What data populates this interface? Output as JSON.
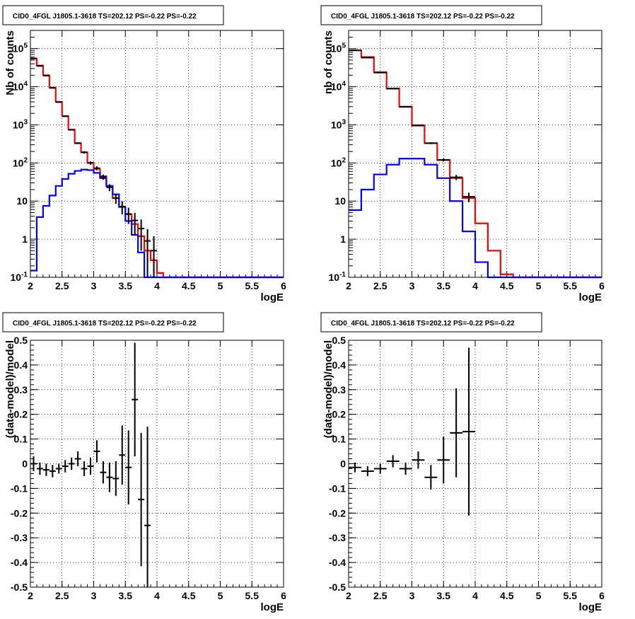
{
  "panel_title": "CID0_4FGL J1805.1-3618 TS=202.12 PS=-0.22 PS=-0.22",
  "chart_data": [
    {
      "type": "line",
      "title": "CID0_4FGL J1805.1-3618 TS=202.12 PS=-0.22 PS=-0.22",
      "xlabel": "logE",
      "ylabel": "Nb of counts",
      "xlim": [
        2,
        6
      ],
      "ylim": [
        0.1,
        300000
      ],
      "yscale": "log",
      "grid": true,
      "x_ticks": [
        "2",
        "2.5",
        "3",
        "3.5",
        "4",
        "4.5",
        "5",
        "5.5",
        "6"
      ],
      "y_ticks": [
        "10^-1",
        "1",
        "10",
        "10^2",
        "10^3",
        "10^4",
        "10^5"
      ],
      "bin_edges": [
        2.0,
        2.1,
        2.2,
        2.3,
        2.4,
        2.5,
        2.6,
        2.7,
        2.8,
        2.9,
        3.0,
        3.1,
        3.2,
        3.3,
        3.4,
        3.5,
        3.6,
        3.7,
        3.8,
        3.9,
        4.0,
        4.1,
        4.2,
        4.3,
        4.4,
        4.5,
        6.0
      ],
      "series": [
        {
          "color": "#ff0000",
          "style": "step",
          "values": [
            55000,
            36000,
            20000,
            9500,
            4000,
            1700,
            750,
            330,
            190,
            100,
            70,
            45,
            25,
            12,
            7,
            4.5,
            2.5,
            1.2,
            0.5,
            0.28,
            0.13,
            0.1,
            0.1,
            0.1,
            0.1,
            0.1
          ]
        },
        {
          "color": "#0000ff",
          "style": "step",
          "values": [
            0.15,
            3.8,
            7.5,
            14,
            25,
            38,
            52,
            62,
            67,
            65,
            55,
            40,
            25,
            15,
            7,
            3,
            1.3,
            0.45,
            0.1,
            0.1,
            0.1,
            0.1,
            0.1,
            0.1,
            0.1,
            0.1
          ]
        },
        {
          "color": "#000000",
          "style": "points",
          "x": [
            2.05,
            2.15,
            2.25,
            2.35,
            2.45,
            2.55,
            2.65,
            2.75,
            2.85,
            2.95,
            3.05,
            3.15,
            3.25,
            3.35,
            3.45,
            3.55,
            3.65,
            3.75,
            3.85,
            3.95
          ],
          "y": [
            55000,
            35000,
            19500,
            9300,
            3950,
            1680,
            740,
            330,
            190,
            100,
            73,
            43,
            23,
            12,
            7.2,
            4.6,
            3.1,
            1.9,
            0.9,
            0.5
          ],
          "yerr": [
            234,
            187,
            140,
            96,
            63,
            41,
            27,
            18,
            14,
            10,
            8.5,
            6.6,
            4.8,
            3.5,
            2.7,
            2.1,
            1.8,
            1.4,
            0.95,
            0.7
          ]
        }
      ]
    },
    {
      "type": "line",
      "title": "CID0_4FGL J1805.1-3618 TS=202.12 PS=-0.22 PS=-0.22",
      "xlabel": "logE",
      "ylabel": "nb of counts",
      "xlim": [
        2,
        6
      ],
      "ylim": [
        0.1,
        300000
      ],
      "yscale": "log",
      "grid": true,
      "x_ticks": [
        "2",
        "2.5",
        "3",
        "3.5",
        "4",
        "4.5",
        "5",
        "5.5",
        "6"
      ],
      "y_ticks": [
        "10^-1",
        "1",
        "10",
        "10^2",
        "10^3",
        "10^4",
        "10^5"
      ],
      "bin_edges": [
        2.0,
        2.2,
        2.4,
        2.6,
        2.8,
        3.0,
        3.2,
        3.4,
        3.6,
        3.8,
        4.0,
        4.2,
        4.4,
        4.6,
        4.8,
        6.0
      ],
      "series": [
        {
          "color": "#ff0000",
          "style": "step",
          "values": [
            90000,
            60000,
            24000,
            9000,
            3000,
            950,
            330,
            120,
            40,
            12,
            2.6,
            0.5,
            0.12,
            0.1,
            0.1
          ]
        },
        {
          "color": "#0000ff",
          "style": "step",
          "values": [
            5.8,
            20,
            50,
            90,
            130,
            130,
            90,
            40,
            10,
            1.6,
            0.25,
            0.1,
            0.1,
            0.1,
            0.1
          ]
        },
        {
          "color": "#000000",
          "style": "points",
          "x": [
            2.1,
            2.3,
            2.5,
            2.7,
            2.9,
            3.1,
            3.3,
            3.5,
            3.7,
            3.9
          ],
          "y": [
            90000,
            58000,
            23500,
            8900,
            2950,
            980,
            330,
            120,
            42,
            13
          ],
          "yerr": [
            300,
            241,
            153,
            94,
            54,
            31,
            18,
            11,
            6.5,
            3.6
          ]
        }
      ]
    },
    {
      "type": "scatter",
      "title": "CID0_4FGL J1805.1-3618 TS=202.12 PS=-0.22 PS=-0.22",
      "xlabel": "logE",
      "ylabel": "(data-model)/model",
      "xlim": [
        2,
        6
      ],
      "ylim": [
        -0.5,
        0.5
      ],
      "grid": true,
      "x_ticks": [
        "2",
        "2.5",
        "3",
        "3.5",
        "4",
        "4.5",
        "5",
        "5.5",
        "6"
      ],
      "y_ticks": [
        "-0.5",
        "-0.4",
        "-0.3",
        "-0.2",
        "-0.1",
        "0",
        "0.1",
        "0.2",
        "0.3",
        "0.4",
        "0.5"
      ],
      "series": [
        {
          "color": "#000000",
          "x": [
            2.05,
            2.15,
            2.25,
            2.35,
            2.45,
            2.55,
            2.65,
            2.75,
            2.85,
            2.95,
            3.05,
            3.15,
            3.25,
            3.35,
            3.45,
            3.55,
            3.65,
            3.75,
            3.85
          ],
          "y": [
            0.0,
            -0.02,
            -0.025,
            -0.03,
            -0.02,
            -0.01,
            0.0,
            0.02,
            -0.02,
            -0.01,
            0.05,
            -0.035,
            -0.055,
            -0.06,
            0.035,
            -0.015,
            0.26,
            -0.145,
            -0.25
          ],
          "yerr": [
            0.03,
            0.025,
            0.025,
            0.025,
            0.02,
            0.025,
            0.025,
            0.03,
            0.03,
            0.035,
            0.045,
            0.045,
            0.06,
            0.07,
            0.12,
            0.15,
            0.23,
            0.27,
            0.4
          ]
        }
      ]
    },
    {
      "type": "scatter",
      "title": "CID0_4FGL J1805.1-3618 TS=202.12 PS=-0.22 PS=-0.22",
      "xlabel": "logE",
      "ylabel": "(data-model)/model",
      "xlim": [
        2,
        6
      ],
      "ylim": [
        -0.5,
        0.5
      ],
      "grid": true,
      "x_ticks": [
        "2",
        "2.5",
        "3",
        "3.5",
        "4",
        "4.5",
        "5",
        "5.5",
        "6"
      ],
      "y_ticks": [
        "-0.5",
        "-0.4",
        "-0.3",
        "-0.2",
        "-0.1",
        "0",
        "0.1",
        "0.2",
        "0.3",
        "0.4",
        "0.5"
      ],
      "series": [
        {
          "color": "#000000",
          "x": [
            2.1,
            2.3,
            2.5,
            2.7,
            2.9,
            3.1,
            3.3,
            3.5,
            3.7,
            3.9
          ],
          "y": [
            -0.015,
            -0.03,
            -0.02,
            0.01,
            -0.02,
            0.015,
            -0.055,
            0.015,
            0.125,
            0.13
          ],
          "yerr": [
            0.02,
            0.02,
            0.02,
            0.025,
            0.025,
            0.035,
            0.05,
            0.095,
            0.18,
            0.34
          ]
        }
      ]
    }
  ]
}
